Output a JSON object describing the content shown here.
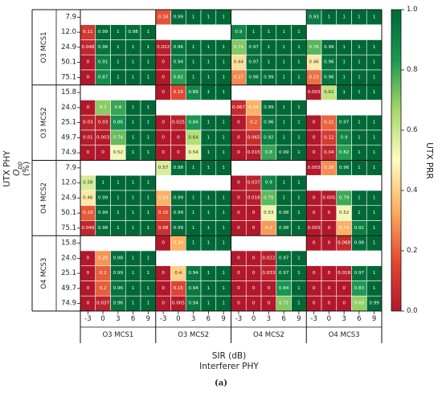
{
  "chart_data": {
    "type": "heatmap",
    "colorbar": {
      "label": "UTX PRR",
      "ticks": [
        "0.0",
        "0.2",
        "0.4",
        "0.6",
        "0.8",
        "1.0"
      ],
      "range": [
        0,
        1
      ],
      "colors": [
        "#b2182b",
        "#e34a33",
        "#fdae61",
        "#fffcc0",
        "#a6d96a",
        "#1a9850",
        "#006837"
      ]
    },
    "ylabel_lines": [
      "UTX PHY",
      "O",
      "pp",
      "(%)"
    ],
    "xlabel_lines": [
      "SIR (dB)",
      "Interferer PHY"
    ],
    "caption": "(a)",
    "sir_ticks": [
      "-3",
      "0",
      "3",
      "6",
      "9"
    ],
    "col_groups": [
      "O3 MCS1",
      "O3 MCS2",
      "O4 MCS2",
      "O4 MCS3"
    ],
    "row_groups": [
      {
        "name": "O3 MCS1",
        "rows": [
          "7.9",
          "12.0",
          "24.9",
          "50.1",
          "75.1"
        ]
      },
      {
        "name": "O3 MCS2",
        "rows": [
          "15.8",
          "24.0",
          "25.1",
          "49.7",
          "74.9"
        ]
      },
      {
        "name": "O4 MCS2",
        "rows": [
          "7.9",
          "12.0",
          "24.9",
          "50.1",
          "75.1"
        ]
      },
      {
        "name": "O4 MCS3",
        "rows": [
          "15.8",
          "24.0",
          "25.1",
          "49.7",
          "74.9"
        ]
      }
    ],
    "values": [
      [
        [
          [
            null,
            null,
            null,
            null,
            null
          ],
          [
            0.18,
            0.99,
            1,
            1,
            1
          ],
          [
            null,
            null,
            null,
            null,
            null
          ],
          [
            0.93,
            1,
            1,
            1,
            1
          ]
        ],
        [
          [
            0.11,
            0.99,
            1,
            0.98,
            1
          ],
          [
            null,
            null,
            null,
            null,
            null
          ],
          [
            0.9,
            1,
            1,
            1,
            1
          ],
          [
            null,
            null,
            null,
            null,
            null
          ]
        ],
        [
          [
            0.048,
            0.96,
            1,
            1,
            1
          ],
          [
            0.022,
            0.96,
            1,
            1,
            1
          ],
          [
            0.71,
            0.97,
            1,
            1,
            1
          ],
          [
            0.76,
            0.99,
            1,
            1,
            1
          ]
        ],
        [
          [
            0,
            0.91,
            1,
            1,
            1
          ],
          [
            0,
            0.94,
            1,
            1,
            1
          ],
          [
            0.44,
            0.97,
            1,
            1,
            1
          ],
          [
            0.46,
            0.96,
            1,
            1,
            1
          ]
        ],
        [
          [
            0,
            0.87,
            1,
            1,
            1
          ],
          [
            0,
            0.82,
            1,
            1,
            1
          ],
          [
            0.27,
            0.96,
            0.99,
            1,
            1
          ],
          [
            0.23,
            0.96,
            1,
            1,
            1
          ]
        ]
      ],
      [
        [
          [
            null,
            null,
            null,
            null,
            null
          ],
          [
            0,
            0.16,
            0.89,
            1,
            1
          ],
          [
            null,
            null,
            null,
            null,
            null
          ],
          [
            0.003,
            0.62,
            1,
            1,
            1
          ]
        ],
        [
          [
            0,
            0.7,
            0.8,
            1,
            1
          ],
          [
            null,
            null,
            null,
            null,
            null
          ],
          [
            0.067,
            0.34,
            0.99,
            1,
            1
          ],
          [
            null,
            null,
            null,
            null,
            null
          ]
        ],
        [
          [
            0.03,
            0.03,
            0.86,
            1,
            1
          ],
          [
            0,
            0.025,
            0.84,
            1,
            1
          ],
          [
            0,
            0.2,
            0.96,
            1,
            1
          ],
          [
            0,
            0.21,
            0.97,
            1,
            1
          ]
        ],
        [
          [
            0.01,
            0.003,
            0.74,
            1,
            1
          ],
          [
            0,
            0,
            0.64,
            1,
            1
          ],
          [
            0,
            0.065,
            0.92,
            1,
            1
          ],
          [
            0,
            0.12,
            0.9,
            1,
            1
          ]
        ],
        [
          [
            0,
            0,
            0.52,
            1,
            1
          ],
          [
            0,
            0,
            0.54,
            1,
            1
          ],
          [
            0,
            0.015,
            0.8,
            0.99,
            1
          ],
          [
            0,
            0.04,
            0.82,
            1,
            1
          ]
        ]
      ],
      [
        [
          [
            null,
            null,
            null,
            null,
            null
          ],
          [
            0.57,
            0.98,
            1,
            1,
            1
          ],
          [
            null,
            null,
            null,
            null,
            null
          ],
          [
            0.003,
            0.28,
            0.96,
            1,
            1
          ]
        ],
        [
          [
            0.58,
            1,
            1,
            1,
            1
          ],
          [
            null,
            null,
            null,
            null,
            null
          ],
          [
            0,
            0.037,
            0.9,
            1,
            1
          ],
          [
            null,
            null,
            null,
            null,
            null
          ]
        ],
        [
          [
            0.46,
            0.99,
            1,
            1,
            1
          ],
          [
            0.34,
            0.99,
            1,
            1,
            1
          ],
          [
            0,
            0.018,
            0.75,
            1,
            1
          ],
          [
            0,
            0.005,
            0.79,
            1,
            1
          ]
        ],
        [
          [
            0.19,
            0.99,
            1,
            1,
            1
          ],
          [
            0.15,
            0.99,
            1,
            1,
            1
          ],
          [
            0,
            0,
            0.53,
            0.98,
            1
          ],
          [
            0,
            0,
            0.52,
            1,
            1
          ]
        ],
        [
          [
            0.048,
            0.98,
            1,
            1,
            1
          ],
          [
            0.08,
            0.99,
            1,
            1,
            1
          ],
          [
            0,
            0,
            0.3,
            0.98,
            1
          ],
          [
            0.003,
            0,
            0.34,
            0.92,
            1
          ]
        ]
      ],
      [
        [
          [
            null,
            null,
            null,
            null,
            null
          ],
          [
            0,
            0.34,
            1,
            1,
            1
          ],
          [
            null,
            null,
            null,
            null,
            null
          ],
          [
            0,
            0,
            0.068,
            0.98,
            1
          ]
        ],
        [
          [
            0,
            0.29,
            0.98,
            1,
            1
          ],
          [
            null,
            null,
            null,
            null,
            null
          ],
          [
            0,
            0,
            0.022,
            0.97,
            1
          ],
          [
            null,
            null,
            null,
            null,
            null
          ]
        ],
        [
          [
            0,
            0.2,
            0.99,
            1,
            1
          ],
          [
            0,
            0.4,
            0.94,
            1,
            1
          ],
          [
            0,
            0,
            0.033,
            0.97,
            1
          ],
          [
            0,
            0,
            0.018,
            0.97,
            1
          ]
        ],
        [
          [
            0,
            0.2,
            0.96,
            1,
            1
          ],
          [
            0,
            0.15,
            0.94,
            1,
            1
          ],
          [
            0,
            0,
            0,
            0.84,
            1
          ],
          [
            0,
            0,
            0,
            0.83,
            1
          ]
        ],
        [
          [
            0,
            0.037,
            0.96,
            1,
            1
          ],
          [
            0,
            0.005,
            0.94,
            1,
            1
          ],
          [
            0,
            0,
            0,
            0.71,
            1
          ],
          [
            0,
            0,
            0,
            0.69,
            0.99
          ]
        ]
      ]
    ]
  }
}
